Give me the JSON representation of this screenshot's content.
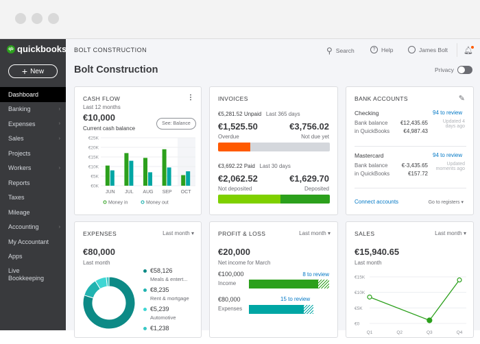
{
  "window": {
    "controls": [
      "close",
      "minimize",
      "maximize"
    ]
  },
  "sidebar": {
    "logo_small": "intuit",
    "logo": "quickbooks",
    "new_label": "New",
    "items": [
      {
        "label": "Dashboard",
        "active": true,
        "chevron": false
      },
      {
        "label": "Banking",
        "chevron": true
      },
      {
        "label": "Expenses",
        "chevron": true
      },
      {
        "label": "Sales",
        "chevron": true
      },
      {
        "label": "Projects",
        "chevron": false
      },
      {
        "label": "Workers",
        "chevron": true
      },
      {
        "label": "Reports",
        "chevron": false
      },
      {
        "label": "Taxes",
        "chevron": false
      },
      {
        "label": "Mileage",
        "chevron": false
      },
      {
        "label": "Accounting",
        "chevron": true
      },
      {
        "label": "My Accountant",
        "chevron": false
      },
      {
        "label": "Apps",
        "chevron": false
      },
      {
        "label": "Live Bookkeeping",
        "chevron": false
      }
    ]
  },
  "header": {
    "company": "BOLT CONSTRUCTION",
    "title": "Bolt Construction",
    "search": "Search",
    "help": "Help",
    "user": "James Bolt",
    "privacy": "Privacy",
    "privacy_on": false
  },
  "cashflow": {
    "title": "CASH FLOW",
    "period": "Last 12 months",
    "amount": "€10,000",
    "caption": "Current cash balance",
    "see_button": "See: Balance"
  },
  "invoices": {
    "title": "INVOICES",
    "unpaid": "€5,281.52 Unpaid",
    "unpaid_period": "Last 365 days",
    "overdue_amount": "€1,525.50",
    "overdue_label": "Overdue",
    "notdue_amount": "€3,756.02",
    "notdue_label": "Not due yet",
    "paid": "€3,692.22 Paid",
    "paid_period": "Last 30 days",
    "notdep_amount": "€2,062.52",
    "notdep_label": "Not deposited",
    "dep_amount": "€1,629.70",
    "dep_label": "Deposited",
    "colors": {
      "overdue": "#ff5a00",
      "notdue": "#d4d7dc",
      "notdep": "#7fd000",
      "dep": "#2ca01c"
    }
  },
  "bank": {
    "title": "BANK ACCOUNTS",
    "accounts": [
      {
        "name": "Checking",
        "review": "94 to review",
        "bank_label": "Bank balance",
        "bank_value": "€12,435.65",
        "qb_label": "in QuickBooks",
        "qb_value": "€4,987.43",
        "updated": "Updated 4 days ago"
      },
      {
        "name": "Mastercard",
        "review": "94 to review",
        "bank_label": "Bank balance",
        "bank_value": "€-3,435.65",
        "qb_label": "in QuickBooks",
        "qb_value": "€157.72",
        "updated": "Updated moments ago"
      }
    ],
    "connect": "Connect accounts",
    "registers": "Go to registers"
  },
  "expenses": {
    "title": "EXPENSES",
    "period": "Last month",
    "amount": "€80,000",
    "caption": "Last month",
    "items": [
      {
        "value": "€58,126",
        "label": "Meals & entert...",
        "color": "#0d8a86"
      },
      {
        "value": "€8,235",
        "label": "Rent & mortgage",
        "color": "#21b3b0"
      },
      {
        "value": "€5,239",
        "label": "Automotive",
        "color": "#3ed6d3"
      },
      {
        "value": "€1,238",
        "label": "",
        "color": "#38c7c4"
      }
    ]
  },
  "pl": {
    "title": "PROFIT & LOSS",
    "period": "Last month",
    "amount": "€20,000",
    "caption": "Net income for March",
    "income_amount": "€100,000",
    "income_label": "Income",
    "income_review": "8 to review",
    "expenses_amount": "€80,000",
    "expenses_label": "Expenses",
    "expenses_review": "15 to review"
  },
  "sales": {
    "title": "SALES",
    "period": "Last month",
    "amount": "€15,940.65",
    "caption": "Last month"
  },
  "chart_data": [
    {
      "type": "bar",
      "categories": [
        "JUN",
        "JUL",
        "AUG",
        "SEP",
        "OCT"
      ],
      "series": [
        {
          "name": "Money in",
          "values": [
            10.5,
            17,
            14.5,
            19,
            5.5
          ],
          "color": "#2ca01c"
        },
        {
          "name": "Money out",
          "values": [
            8,
            13,
            7,
            9.5,
            7.5
          ],
          "color": "#00a6a4"
        }
      ],
      "yticks": [
        "€0K",
        "€5K",
        "€10K",
        "€15K",
        "€20K",
        "€25K"
      ],
      "ylim": [
        0,
        25
      ],
      "legend": "bottom"
    },
    {
      "type": "line",
      "categories": [
        "Q1",
        "Q2",
        "Q3",
        "Q4"
      ],
      "points": [
        {
          "x": "Q1",
          "y": 8.5
        },
        {
          "x": "Q3",
          "y": 1
        },
        {
          "x": "Q4",
          "y": 14
        }
      ],
      "yticks": [
        "€0",
        "€5K",
        "€10K",
        "€15K"
      ],
      "ylim": [
        0,
        15
      ],
      "color": "#2ca01c"
    }
  ]
}
